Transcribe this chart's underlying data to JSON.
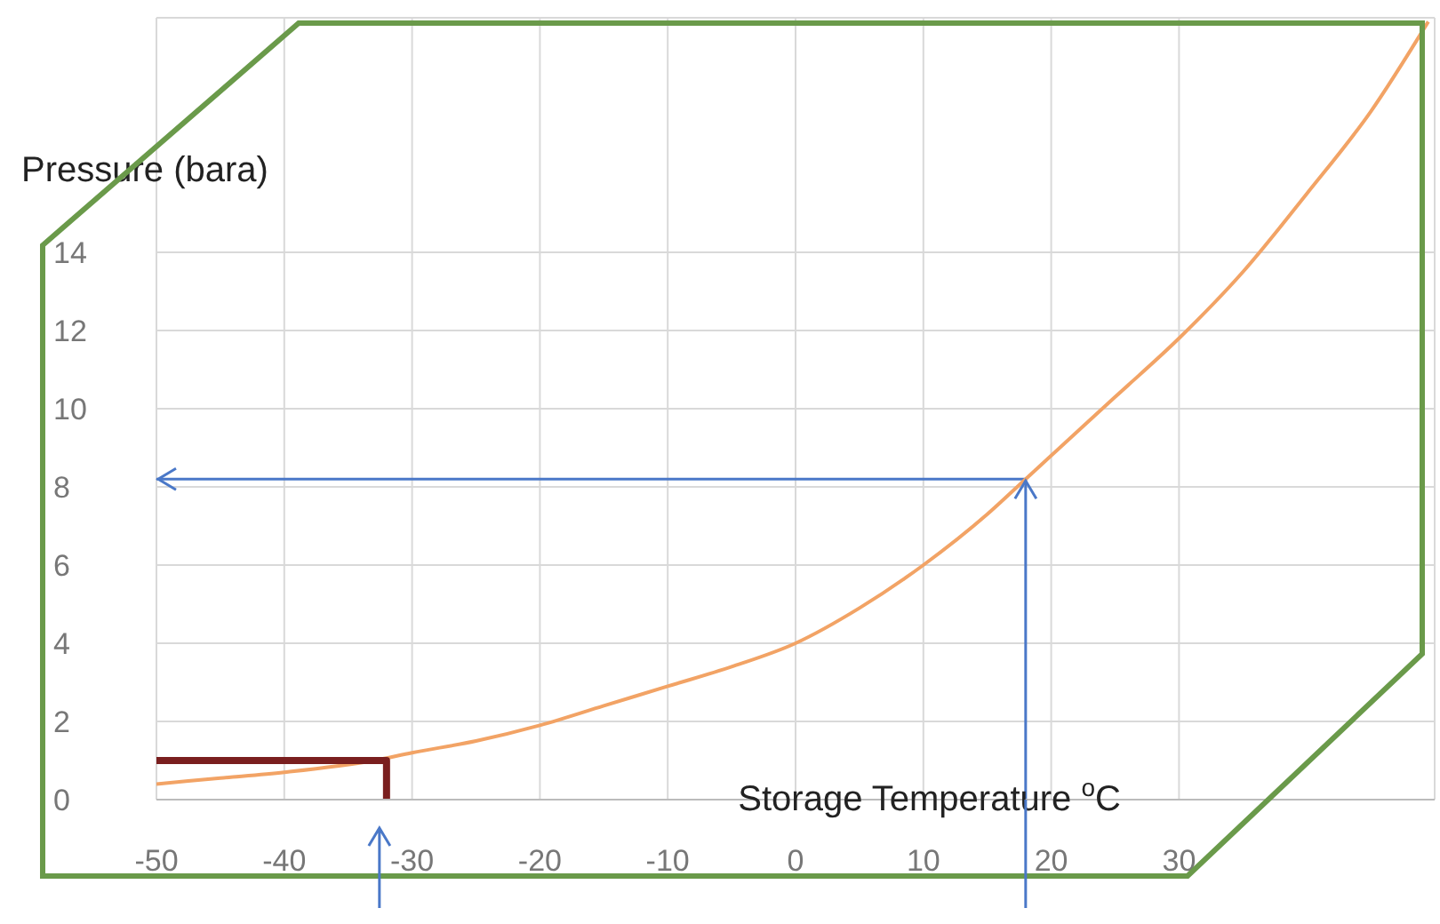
{
  "chart_data": {
    "type": "line",
    "xlabel": "Storage Temperature $^{o}$C",
    "ylabel": "Pressure (bara)",
    "xlim": [
      -50,
      50
    ],
    "ylim": [
      0,
      20
    ],
    "xticks": [
      -50,
      -40,
      -30,
      -20,
      -10,
      0,
      10,
      20,
      30
    ],
    "yticks": [
      0,
      2,
      4,
      6,
      8,
      10,
      12,
      14
    ],
    "grid": true,
    "marker": "none",
    "ref_lines": [
      {
        "axis": "y",
        "value": 8.2,
        "color": "#4a78c8"
      },
      {
        "axis": "x",
        "value": 18,
        "color": "#4a78c8"
      }
    ],
    "series": [
      {
        "color": "#f2a365",
        "x": [
          -50,
          -45,
          -40,
          -33,
          -30,
          -25,
          -20,
          -15,
          -10,
          -5,
          0,
          5,
          10,
          15,
          18,
          20,
          25,
          30,
          35,
          40,
          45,
          49.5
        ],
        "values": [
          0.4,
          0.55,
          0.7,
          1.0,
          1.2,
          1.5,
          1.9,
          2.4,
          2.9,
          3.4,
          4.0,
          4.9,
          6.0,
          7.3,
          8.2,
          8.8,
          10.3,
          11.8,
          13.5,
          15.5,
          17.6,
          19.9
        ]
      },
      {
        "color": "#7a1f1f",
        "x": [
          -50,
          -32,
          -32
        ],
        "values": [
          1,
          1,
          0
        ]
      }
    ]
  }
}
